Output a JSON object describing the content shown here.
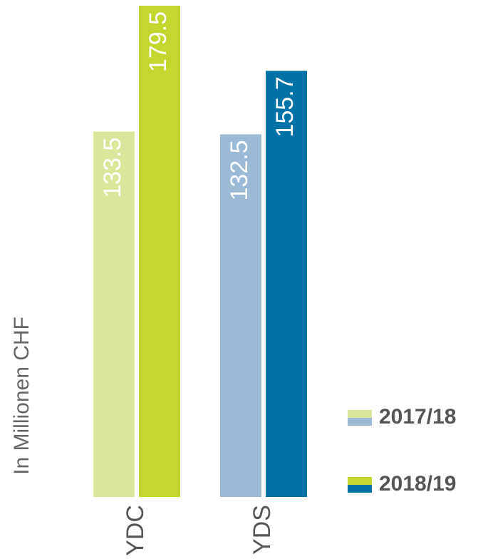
{
  "chart_data": {
    "type": "bar",
    "y_label": "In Millionen CHF",
    "categories": [
      "YDC",
      "YDS"
    ],
    "series": [
      {
        "name": "2017/18",
        "colors": [
          "#dce69a",
          "#9cb9d6"
        ],
        "values": [
          133.5,
          132.5
        ]
      },
      {
        "name": "2018/19",
        "colors": [
          "#c3d72e",
          "#0073a6"
        ],
        "values": [
          179.5,
          155.7
        ]
      }
    ]
  }
}
